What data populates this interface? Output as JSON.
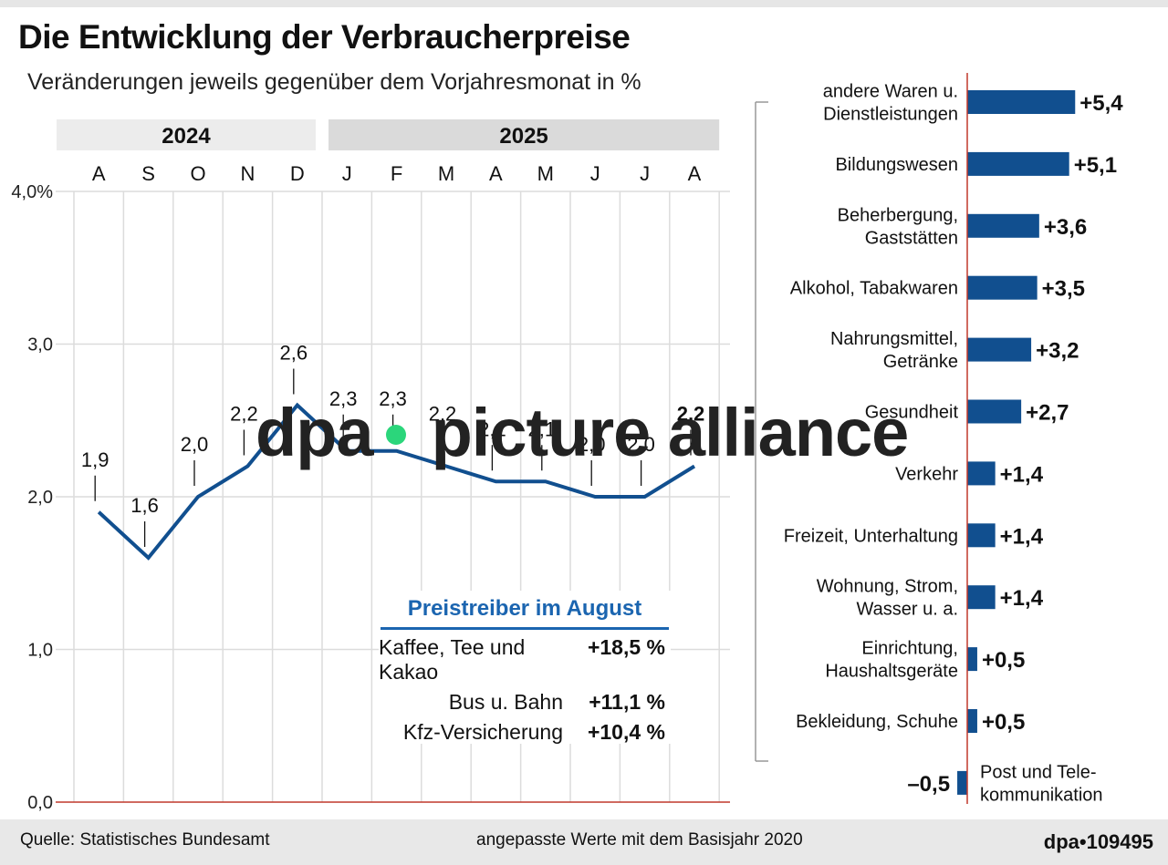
{
  "title": "Die Entwicklung der Verbraucherpreise",
  "subtitle": "Veränderungen jeweils gegenüber dem Vorjahresmonat in %",
  "chart_data": [
    {
      "type": "line",
      "years": [
        {
          "label": "2024",
          "months": 5
        },
        {
          "label": "2025",
          "months": 8
        }
      ],
      "categories": [
        "A",
        "S",
        "O",
        "N",
        "D",
        "J",
        "F",
        "M",
        "A",
        "M",
        "J",
        "J",
        "A"
      ],
      "values": [
        1.9,
        1.6,
        2.0,
        2.2,
        2.6,
        2.3,
        2.3,
        2.2,
        2.1,
        2.1,
        2.0,
        2.0,
        2.2
      ],
      "value_labels": [
        "1,9",
        "1,6",
        "2,0",
        "2,2",
        "2,6",
        "2,3",
        "2,3",
        "2,2",
        "2,1",
        "2,1",
        "2,0",
        "2,0",
        "2,2"
      ],
      "ylim": [
        0,
        4.0
      ],
      "yticks": [
        0,
        1.0,
        2.0,
        3.0,
        4.0
      ],
      "ytick_labels": [
        "0,0",
        "1,0",
        "2,0",
        "3,0",
        "4,0%"
      ],
      "grid": true,
      "color": "#114f8f"
    },
    {
      "type": "bar",
      "orientation": "horizontal",
      "categories": [
        "andere Waren u. Dienstleistungen",
        "Bildungswesen",
        "Beherbergung, Gaststätten",
        "Alkohol, Tabakwaren",
        "Nahrungsmittel, Getränke",
        "Gesundheit",
        "Verkehr",
        "Freizeit, Unterhaltung",
        "Wohnung, Strom, Wasser u. a.",
        "Einrichtung, Haushaltsgeräte",
        "Bekleidung, Schuhe",
        "Post und Telekommunikation"
      ],
      "category_lines": [
        [
          "andere Waren u.",
          "Dienstleistungen"
        ],
        [
          "Bildungswesen"
        ],
        [
          "Beherbergung,",
          "Gaststätten"
        ],
        [
          "Alkohol, Tabakwaren"
        ],
        [
          "Nahrungsmittel,",
          "Getränke"
        ],
        [
          "Gesundheit"
        ],
        [
          "Verkehr"
        ],
        [
          "Freizeit, Unterhaltung"
        ],
        [
          "Wohnung, Strom,",
          "Wasser u. a."
        ],
        [
          "Einrichtung,",
          "Haushaltsgeräte"
        ],
        [
          "Bekleidung, Schuhe"
        ],
        [
          "Post und Tele-",
          "kommunikation"
        ]
      ],
      "values": [
        5.4,
        5.1,
        3.6,
        3.5,
        3.2,
        2.7,
        1.4,
        1.4,
        1.4,
        0.5,
        0.5,
        -0.5
      ],
      "value_labels": [
        "+5,4",
        "+5,1",
        "+3,6",
        "+3,5",
        "+3,2",
        "+2,7",
        "+1,4",
        "+1,4",
        "+1,4",
        "+0,5",
        "+0,5",
        "–0,5"
      ],
      "color": "#114f8f"
    }
  ],
  "callout": {
    "title": "Preistreiber im August",
    "items": [
      {
        "label": "Kaffee, Tee und Kakao",
        "value": "+18,5 %"
      },
      {
        "label": "Bus u. Bahn",
        "value": "+11,1 %"
      },
      {
        "label": "Kfz-Versicherung",
        "value": "+10,4 %"
      }
    ]
  },
  "footer": {
    "source": "Quelle: Statistisches Bundesamt",
    "note": "angepasste Werte mit dem Basisjahr 2020",
    "id": "dpa•109495"
  },
  "watermark": {
    "left": "dpa",
    "right": "picture alliance"
  }
}
